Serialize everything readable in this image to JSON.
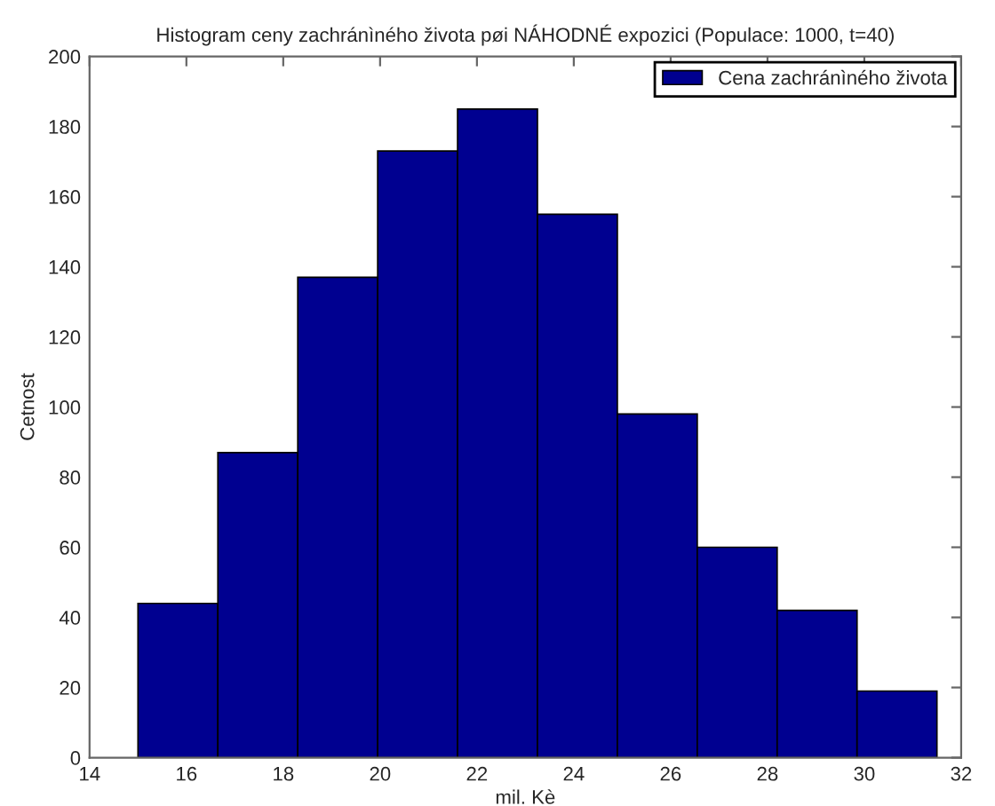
{
  "chart_data": {
    "type": "histogram",
    "title": "Histogram ceny zachránìného života pøi NÁHODNÉ expozici (Populace: 1000, t=40)",
    "xlabel": "mil. Kè",
    "ylabel": "Cetnost",
    "bins": [
      15,
      16.65,
      18.3,
      19.95,
      21.6,
      23.25,
      24.9,
      26.55,
      28.2,
      29.85,
      31.5
    ],
    "series": [
      {
        "name": "Cena zachránìného života",
        "color": "#000090",
        "values": [
          44,
          87,
          137,
          173,
          185,
          155,
          98,
          60,
          42,
          19
        ]
      }
    ],
    "xlim": [
      14,
      32
    ],
    "xticks": [
      14,
      16,
      18,
      20,
      22,
      24,
      26,
      28,
      30,
      32
    ],
    "ylim": [
      0,
      200
    ],
    "yticks": [
      0,
      20,
      40,
      60,
      80,
      100,
      120,
      140,
      160,
      180,
      200
    ],
    "legend": "top right"
  }
}
